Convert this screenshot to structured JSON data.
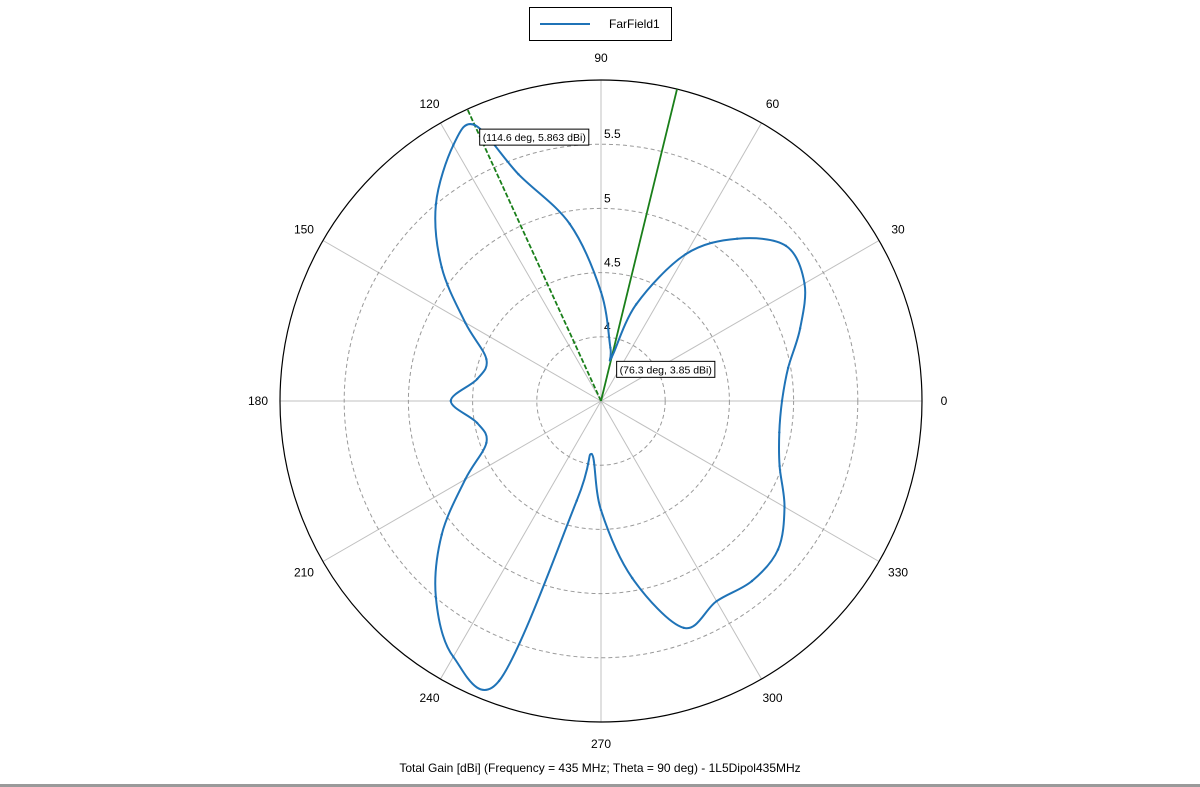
{
  "legend": {
    "label": "FarField1"
  },
  "caption": "Total Gain [dBi] (Frequency = 435 MHz; Theta = 90 deg) - 1L5Dipol435MHz",
  "colors": {
    "trace": "#1f73b7",
    "marker": "#1a7f1a",
    "grid": "#c0c0c0",
    "ring_dashed": "#9a9a9a"
  },
  "chart_data": {
    "type": "polar",
    "series": [
      {
        "name": "FarField1",
        "angle_deg": [
          0,
          10,
          20,
          30,
          40,
          50,
          60,
          70,
          76.3,
          80,
          90,
          100,
          110,
          114.6,
          120,
          130,
          140,
          150,
          160,
          170,
          180,
          190,
          200,
          210,
          220,
          230,
          240,
          250,
          256.3,
          260,
          270,
          280,
          290,
          300,
          310,
          320,
          330,
          340,
          350,
          360
        ],
        "gain_dbi": [
          4.91,
          4.98,
          5.15,
          5.33,
          5.38,
          5.15,
          4.82,
          4.3,
          3.85,
          3.92,
          4.35,
          4.9,
          5.38,
          5.863,
          5.8,
          5.5,
          5.12,
          4.72,
          4.45,
          4.48,
          4.67,
          4.48,
          4.45,
          4.72,
          5.12,
          5.5,
          5.8,
          5.82,
          4.3,
          3.92,
          4.35,
          4.9,
          5.38,
          5.3,
          5.33,
          5.3,
          5.15,
          4.98,
          4.91,
          4.91
        ]
      }
    ],
    "radial_ticks": [
      4,
      4.5,
      5,
      5.5
    ],
    "angular_ticks": [
      0,
      30,
      60,
      90,
      120,
      150,
      180,
      210,
      240,
      270,
      300,
      330
    ],
    "r_min": 3.5,
    "r_max": 6.0,
    "markers": [
      {
        "angle_deg": 114.6,
        "gain_dbi": 5.863,
        "label": "(114.6 deg, 5.863 dBi)",
        "line_style": "dashed"
      },
      {
        "angle_deg": 76.3,
        "gain_dbi": 3.85,
        "label": "(76.3 deg, 3.85 dBi)",
        "line_style": "solid"
      }
    ],
    "xlabel": "Total Gain [dBi] (Frequency = 435 MHz; Theta = 90 deg) - 1L5Dipol435MHz",
    "legend_position": "top-center",
    "grid": true
  }
}
